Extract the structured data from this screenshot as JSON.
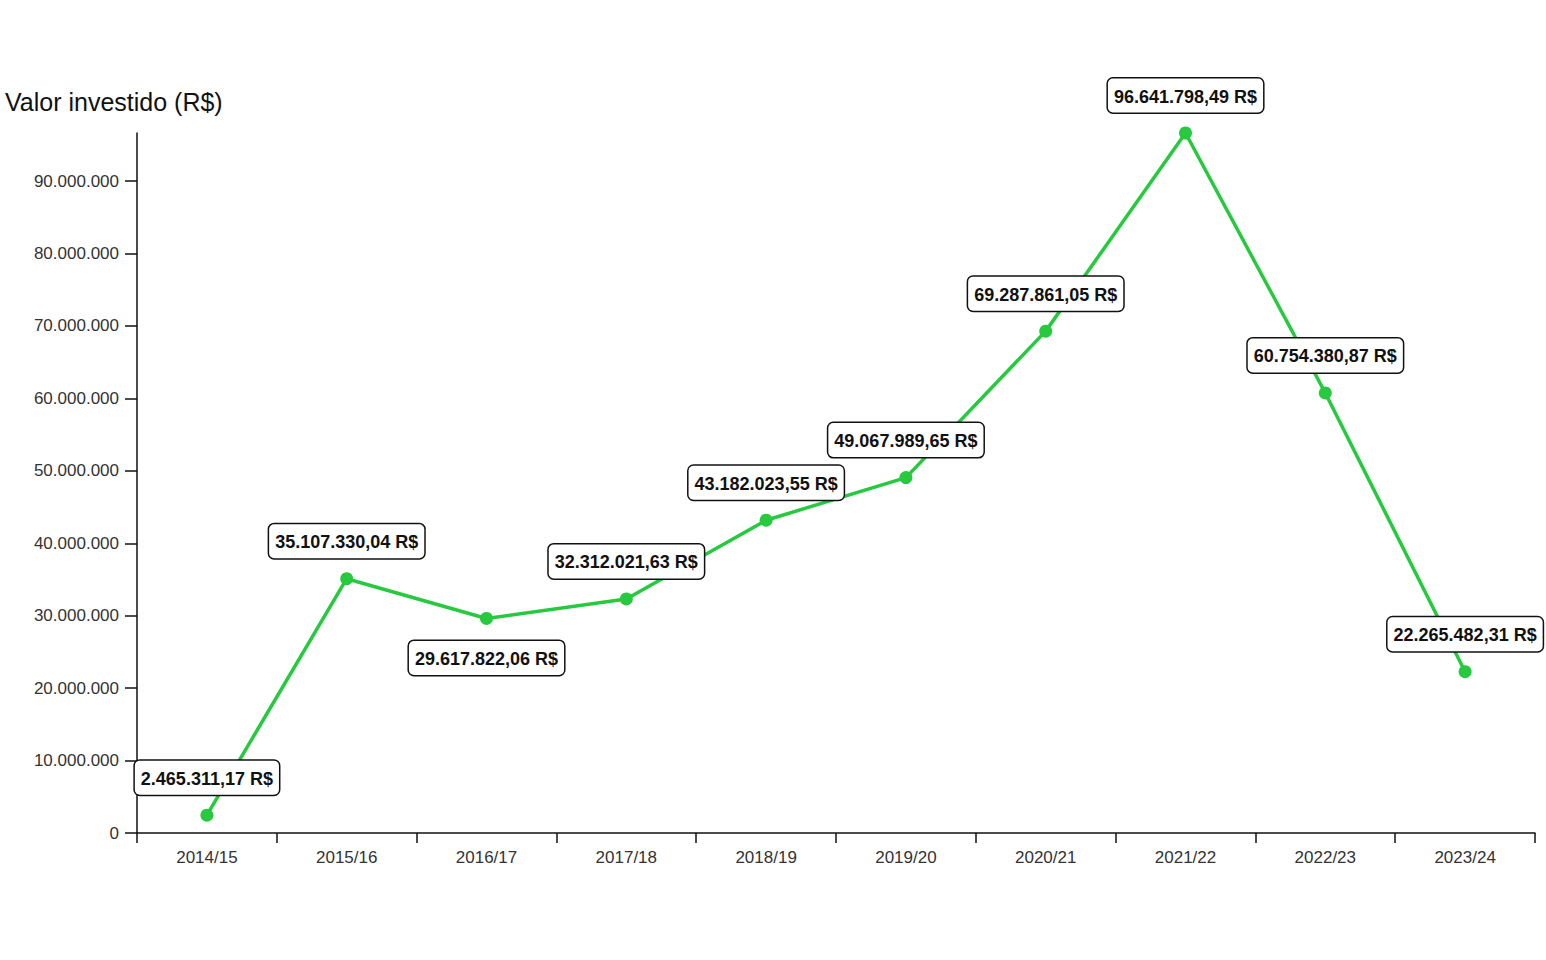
{
  "chart_data": {
    "type": "line",
    "y_label": "Valor investido (R$)",
    "categories": [
      "2014/15",
      "2015/16",
      "2016/17",
      "2017/18",
      "2018/19",
      "2019/20",
      "2020/21",
      "2021/22",
      "2022/23",
      "2023/24"
    ],
    "values": [
      2465311.17,
      35107330.04,
      29617822.06,
      32312021.63,
      43182023.55,
      49067989.65,
      69287861.05,
      96641798.49,
      60754380.87,
      22265482.31
    ],
    "value_labels": [
      "2.465.311,17 R$",
      "35.107.330,04 R$",
      "29.617.822,06 R$",
      "32.312.021,63 R$",
      "43.182.023,55 R$",
      "49.067.989,65 R$",
      "69.287.861,05 R$",
      "96.641.798,49 R$",
      "60.754.380,87 R$",
      "22.265.482,31 R$"
    ],
    "color": "#27c93f",
    "marker": "circle",
    "data_labels": true,
    "grid": false,
    "ylim": [
      0,
      96641798.49
    ],
    "yticks": [
      {
        "value": 0,
        "label": "0"
      },
      {
        "value": 10000000,
        "label": "10.000.000"
      },
      {
        "value": 20000000,
        "label": "20.000.000"
      },
      {
        "value": 30000000,
        "label": "30.000.000"
      },
      {
        "value": 40000000,
        "label": "40.000.000"
      },
      {
        "value": 50000000,
        "label": "50.000.000"
      },
      {
        "value": 60000000,
        "label": "60.000.000"
      },
      {
        "value": 70000000,
        "label": "70.000.000"
      },
      {
        "value": 80000000,
        "label": "80.000.000"
      },
      {
        "value": 90000000,
        "label": "90.000.000"
      }
    ]
  }
}
